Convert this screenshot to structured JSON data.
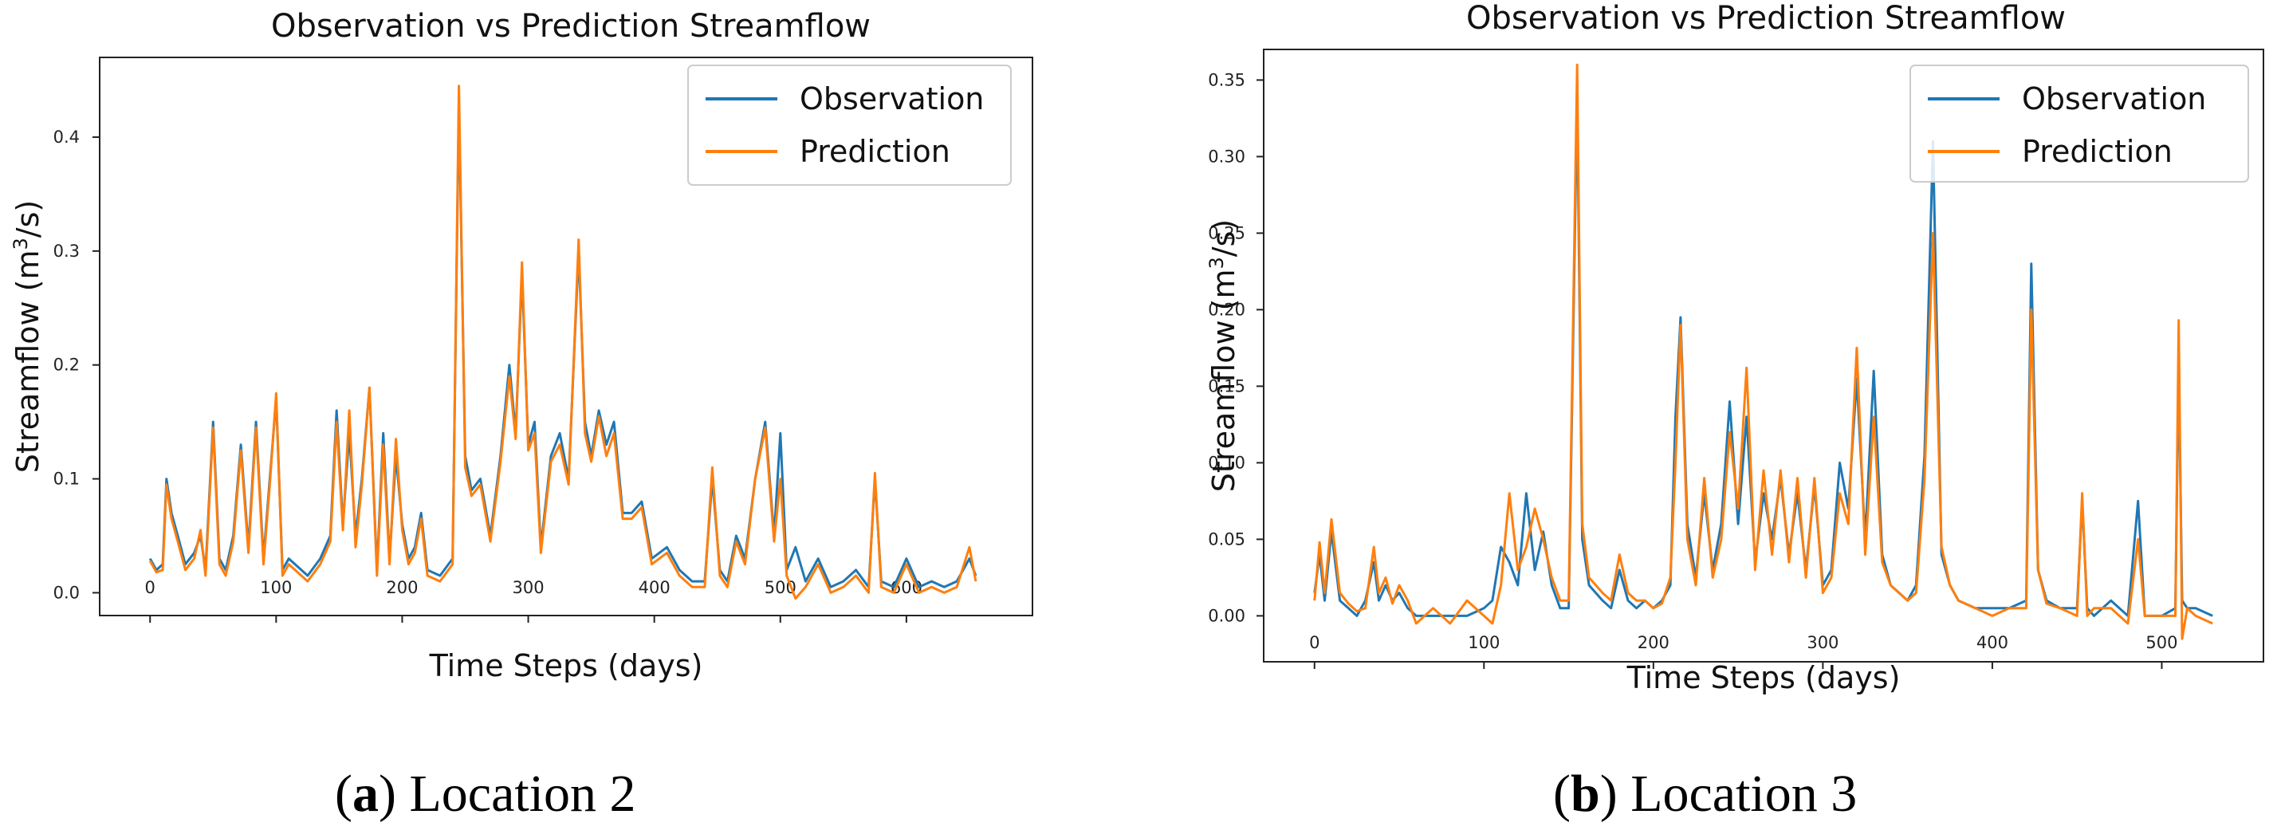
{
  "chart_data": [
    {
      "type": "line",
      "panel": "a",
      "caption_letter": "a",
      "caption_text": "Location 2",
      "title": "Observation vs Prediction Streamflow",
      "xlabel": "Time Steps (days)",
      "ylabel_main": "Streamflow (m",
      "ylabel_sup": "3",
      "ylabel_end": "/s)",
      "xlim": [
        -40,
        700
      ],
      "ylim": [
        -0.02,
        0.47
      ],
      "xticks": [
        0,
        100,
        200,
        300,
        400,
        500,
        600
      ],
      "xtick_labels": [
        "0",
        "100",
        "200",
        "300",
        "400",
        "500",
        "600"
      ],
      "yticks": [
        0.0,
        0.1,
        0.2,
        0.3,
        0.4
      ],
      "ytick_labels": [
        "0.0",
        "0.1",
        "0.2",
        "0.3",
        "0.4"
      ],
      "legend": [
        "Observation",
        "Prediction"
      ],
      "legend_position": "top-right",
      "series": [
        {
          "name": "Observation",
          "color": "#1f77b4",
          "x": [
            0,
            5,
            10,
            13,
            17,
            22,
            28,
            35,
            40,
            44,
            50,
            55,
            60,
            66,
            72,
            78,
            84,
            90,
            95,
            100,
            105,
            110,
            115,
            125,
            135,
            143,
            148,
            153,
            158,
            163,
            168,
            174,
            180,
            185,
            190,
            195,
            200,
            205,
            210,
            215,
            220,
            230,
            240,
            245,
            250,
            255,
            262,
            270,
            278,
            285,
            290,
            295,
            300,
            305,
            310,
            318,
            325,
            332,
            340,
            345,
            350,
            356,
            362,
            368,
            375,
            382,
            390,
            398,
            410,
            420,
            430,
            440,
            446,
            452,
            458,
            465,
            472,
            480,
            488,
            495,
            500,
            505,
            512,
            520,
            530,
            540,
            550,
            560,
            570,
            575,
            580,
            590,
            600,
            610,
            620,
            630,
            640,
            650,
            655
          ],
          "y": [
            0.03,
            0.02,
            0.025,
            0.1,
            0.07,
            0.05,
            0.025,
            0.035,
            0.05,
            0.02,
            0.15,
            0.03,
            0.02,
            0.05,
            0.13,
            0.04,
            0.15,
            0.03,
            0.1,
            0.17,
            0.02,
            0.03,
            0.025,
            0.015,
            0.03,
            0.05,
            0.16,
            0.06,
            0.14,
            0.05,
            0.1,
            0.18,
            0.02,
            0.14,
            0.03,
            0.12,
            0.06,
            0.03,
            0.04,
            0.07,
            0.02,
            0.015,
            0.03,
            0.43,
            0.12,
            0.09,
            0.1,
            0.05,
            0.12,
            0.2,
            0.14,
            0.28,
            0.13,
            0.15,
            0.04,
            0.12,
            0.14,
            0.1,
            0.3,
            0.15,
            0.12,
            0.16,
            0.13,
            0.15,
            0.07,
            0.07,
            0.08,
            0.03,
            0.04,
            0.02,
            0.01,
            0.01,
            0.1,
            0.02,
            0.01,
            0.05,
            0.03,
            0.1,
            0.15,
            0.05,
            0.14,
            0.02,
            0.04,
            0.01,
            0.03,
            0.005,
            0.01,
            0.02,
            0.005,
            0.1,
            0.01,
            0.005,
            0.03,
            0.005,
            0.01,
            0.005,
            0.01,
            0.03,
            0.015
          ]
        },
        {
          "name": "Prediction",
          "color": "#ff7f0e",
          "x": [
            0,
            5,
            10,
            13,
            17,
            22,
            28,
            35,
            40,
            44,
            50,
            55,
            60,
            66,
            72,
            78,
            84,
            90,
            95,
            100,
            105,
            110,
            115,
            125,
            135,
            143,
            148,
            153,
            158,
            163,
            168,
            174,
            180,
            185,
            190,
            195,
            200,
            205,
            210,
            215,
            220,
            230,
            240,
            245,
            250,
            255,
            262,
            270,
            278,
            285,
            290,
            295,
            300,
            305,
            310,
            318,
            325,
            332,
            340,
            345,
            350,
            356,
            362,
            368,
            375,
            382,
            390,
            398,
            410,
            420,
            430,
            440,
            446,
            452,
            458,
            465,
            472,
            480,
            488,
            495,
            500,
            505,
            512,
            520,
            530,
            540,
            550,
            560,
            570,
            575,
            580,
            590,
            600,
            610,
            620,
            630,
            640,
            650,
            655
          ],
          "y": [
            0.028,
            0.018,
            0.02,
            0.095,
            0.065,
            0.045,
            0.02,
            0.03,
            0.055,
            0.015,
            0.145,
            0.025,
            0.015,
            0.045,
            0.125,
            0.035,
            0.145,
            0.025,
            0.095,
            0.175,
            0.015,
            0.025,
            0.02,
            0.01,
            0.025,
            0.045,
            0.15,
            0.055,
            0.16,
            0.04,
            0.095,
            0.18,
            0.015,
            0.13,
            0.025,
            0.135,
            0.055,
            0.025,
            0.035,
            0.065,
            0.015,
            0.01,
            0.025,
            0.445,
            0.11,
            0.085,
            0.095,
            0.045,
            0.115,
            0.19,
            0.135,
            0.29,
            0.125,
            0.14,
            0.035,
            0.115,
            0.13,
            0.095,
            0.31,
            0.14,
            0.115,
            0.155,
            0.12,
            0.14,
            0.065,
            0.065,
            0.075,
            0.025,
            0.035,
            0.015,
            0.005,
            0.005,
            0.11,
            0.015,
            0.005,
            0.045,
            0.025,
            0.1,
            0.145,
            0.045,
            0.1,
            0.015,
            -0.005,
            0.005,
            0.025,
            0.0,
            0.005,
            0.015,
            0.0,
            0.105,
            0.005,
            0.0,
            0.025,
            0.0,
            0.005,
            0.0,
            0.005,
            0.04,
            0.01
          ]
        }
      ]
    },
    {
      "type": "line",
      "panel": "b",
      "caption_letter": "b",
      "caption_text": "Location 3",
      "title": "Observation vs Prediction Streamflow",
      "xlabel": "Time Steps (days)",
      "ylabel_main": "Streamflow (m",
      "ylabel_sup": "3",
      "ylabel_end": "/s)",
      "xlim": [
        -30,
        560
      ],
      "ylim": [
        -0.03,
        0.37
      ],
      "xticks": [
        0,
        100,
        200,
        300,
        400,
        500
      ],
      "xtick_labels": [
        "0",
        "100",
        "200",
        "300",
        "400",
        "500"
      ],
      "yticks": [
        0.0,
        0.05,
        0.1,
        0.15,
        0.2,
        0.25,
        0.3,
        0.35
      ],
      "ytick_labels": [
        "0.00",
        "0.05",
        "0.10",
        "0.15",
        "0.20",
        "0.25",
        "0.30",
        "0.35"
      ],
      "legend": [
        "Observation",
        "Prediction"
      ],
      "legend_position": "top-right",
      "series": [
        {
          "name": "Observation",
          "color": "#1f77b4",
          "x": [
            0,
            3,
            6,
            10,
            15,
            20,
            25,
            30,
            35,
            38,
            42,
            46,
            50,
            55,
            60,
            70,
            80,
            90,
            100,
            105,
            110,
            115,
            120,
            125,
            130,
            135,
            140,
            145,
            150,
            155,
            158,
            162,
            166,
            170,
            175,
            180,
            185,
            190,
            195,
            200,
            205,
            210,
            213,
            216,
            220,
            225,
            230,
            235,
            240,
            245,
            250,
            255,
            260,
            265,
            270,
            275,
            280,
            285,
            290,
            295,
            300,
            305,
            310,
            315,
            320,
            325,
            330,
            335,
            340,
            345,
            350,
            355,
            360,
            365,
            370,
            375,
            380,
            390,
            400,
            410,
            420,
            423,
            427,
            432,
            440,
            450,
            453,
            456,
            460,
            470,
            480,
            486,
            490,
            500,
            508,
            510,
            512,
            515,
            520,
            530
          ],
          "y": [
            0.015,
            0.04,
            0.01,
            0.055,
            0.01,
            0.005,
            0.0,
            0.01,
            0.035,
            0.01,
            0.02,
            0.01,
            0.015,
            0.005,
            0.0,
            0.0,
            0.0,
            0.0,
            0.005,
            0.01,
            0.045,
            0.035,
            0.02,
            0.08,
            0.03,
            0.055,
            0.02,
            0.005,
            0.005,
            0.34,
            0.05,
            0.02,
            0.015,
            0.01,
            0.005,
            0.03,
            0.01,
            0.005,
            0.01,
            0.005,
            0.01,
            0.02,
            0.13,
            0.195,
            0.06,
            0.025,
            0.08,
            0.03,
            0.06,
            0.14,
            0.06,
            0.13,
            0.035,
            0.08,
            0.05,
            0.09,
            0.04,
            0.08,
            0.03,
            0.085,
            0.02,
            0.03,
            0.1,
            0.07,
            0.155,
            0.05,
            0.16,
            0.04,
            0.02,
            0.015,
            0.01,
            0.02,
            0.105,
            0.31,
            0.04,
            0.02,
            0.01,
            0.005,
            0.005,
            0.005,
            0.01,
            0.23,
            0.03,
            0.01,
            0.005,
            0.005,
            0.075,
            0.005,
            0.0,
            0.01,
            0.0,
            0.075,
            0.0,
            0.0,
            0.005,
            0.165,
            0.01,
            0.005,
            0.005,
            0.0
          ]
        },
        {
          "name": "Prediction",
          "color": "#ff7f0e",
          "x": [
            0,
            3,
            6,
            10,
            15,
            20,
            25,
            30,
            35,
            38,
            42,
            46,
            50,
            55,
            60,
            70,
            80,
            90,
            100,
            105,
            110,
            115,
            120,
            125,
            130,
            135,
            140,
            145,
            150,
            155,
            158,
            162,
            166,
            170,
            175,
            180,
            185,
            190,
            195,
            200,
            205,
            210,
            213,
            216,
            220,
            225,
            230,
            235,
            240,
            245,
            250,
            255,
            260,
            265,
            270,
            275,
            280,
            285,
            290,
            295,
            300,
            305,
            310,
            315,
            320,
            325,
            330,
            335,
            340,
            345,
            350,
            355,
            360,
            365,
            370,
            375,
            380,
            390,
            400,
            410,
            420,
            423,
            427,
            432,
            440,
            450,
            453,
            456,
            460,
            470,
            480,
            486,
            490,
            500,
            508,
            510,
            512,
            515,
            520,
            530
          ],
          "y": [
            0.01,
            0.048,
            0.015,
            0.063,
            0.015,
            0.008,
            0.003,
            0.005,
            0.045,
            0.015,
            0.025,
            0.008,
            0.02,
            0.01,
            -0.005,
            0.005,
            -0.005,
            0.01,
            0.0,
            -0.005,
            0.02,
            0.08,
            0.03,
            0.045,
            0.07,
            0.05,
            0.025,
            0.01,
            0.01,
            0.36,
            0.06,
            0.025,
            0.02,
            0.015,
            0.01,
            0.04,
            0.015,
            0.01,
            0.01,
            0.005,
            0.008,
            0.025,
            0.1,
            0.19,
            0.05,
            0.02,
            0.09,
            0.025,
            0.05,
            0.12,
            0.07,
            0.162,
            0.03,
            0.095,
            0.04,
            0.095,
            0.035,
            0.09,
            0.025,
            0.09,
            0.015,
            0.025,
            0.08,
            0.06,
            0.175,
            0.04,
            0.13,
            0.035,
            0.02,
            0.015,
            0.01,
            0.015,
            0.09,
            0.25,
            0.045,
            0.02,
            0.01,
            0.005,
            0.0,
            0.005,
            0.005,
            0.2,
            0.03,
            0.008,
            0.005,
            0.0,
            0.08,
            0.0,
            0.005,
            0.005,
            -0.005,
            0.05,
            0.0,
            0.0,
            0.0,
            0.193,
            -0.015,
            0.005,
            0.0,
            -0.005
          ]
        }
      ]
    }
  ]
}
